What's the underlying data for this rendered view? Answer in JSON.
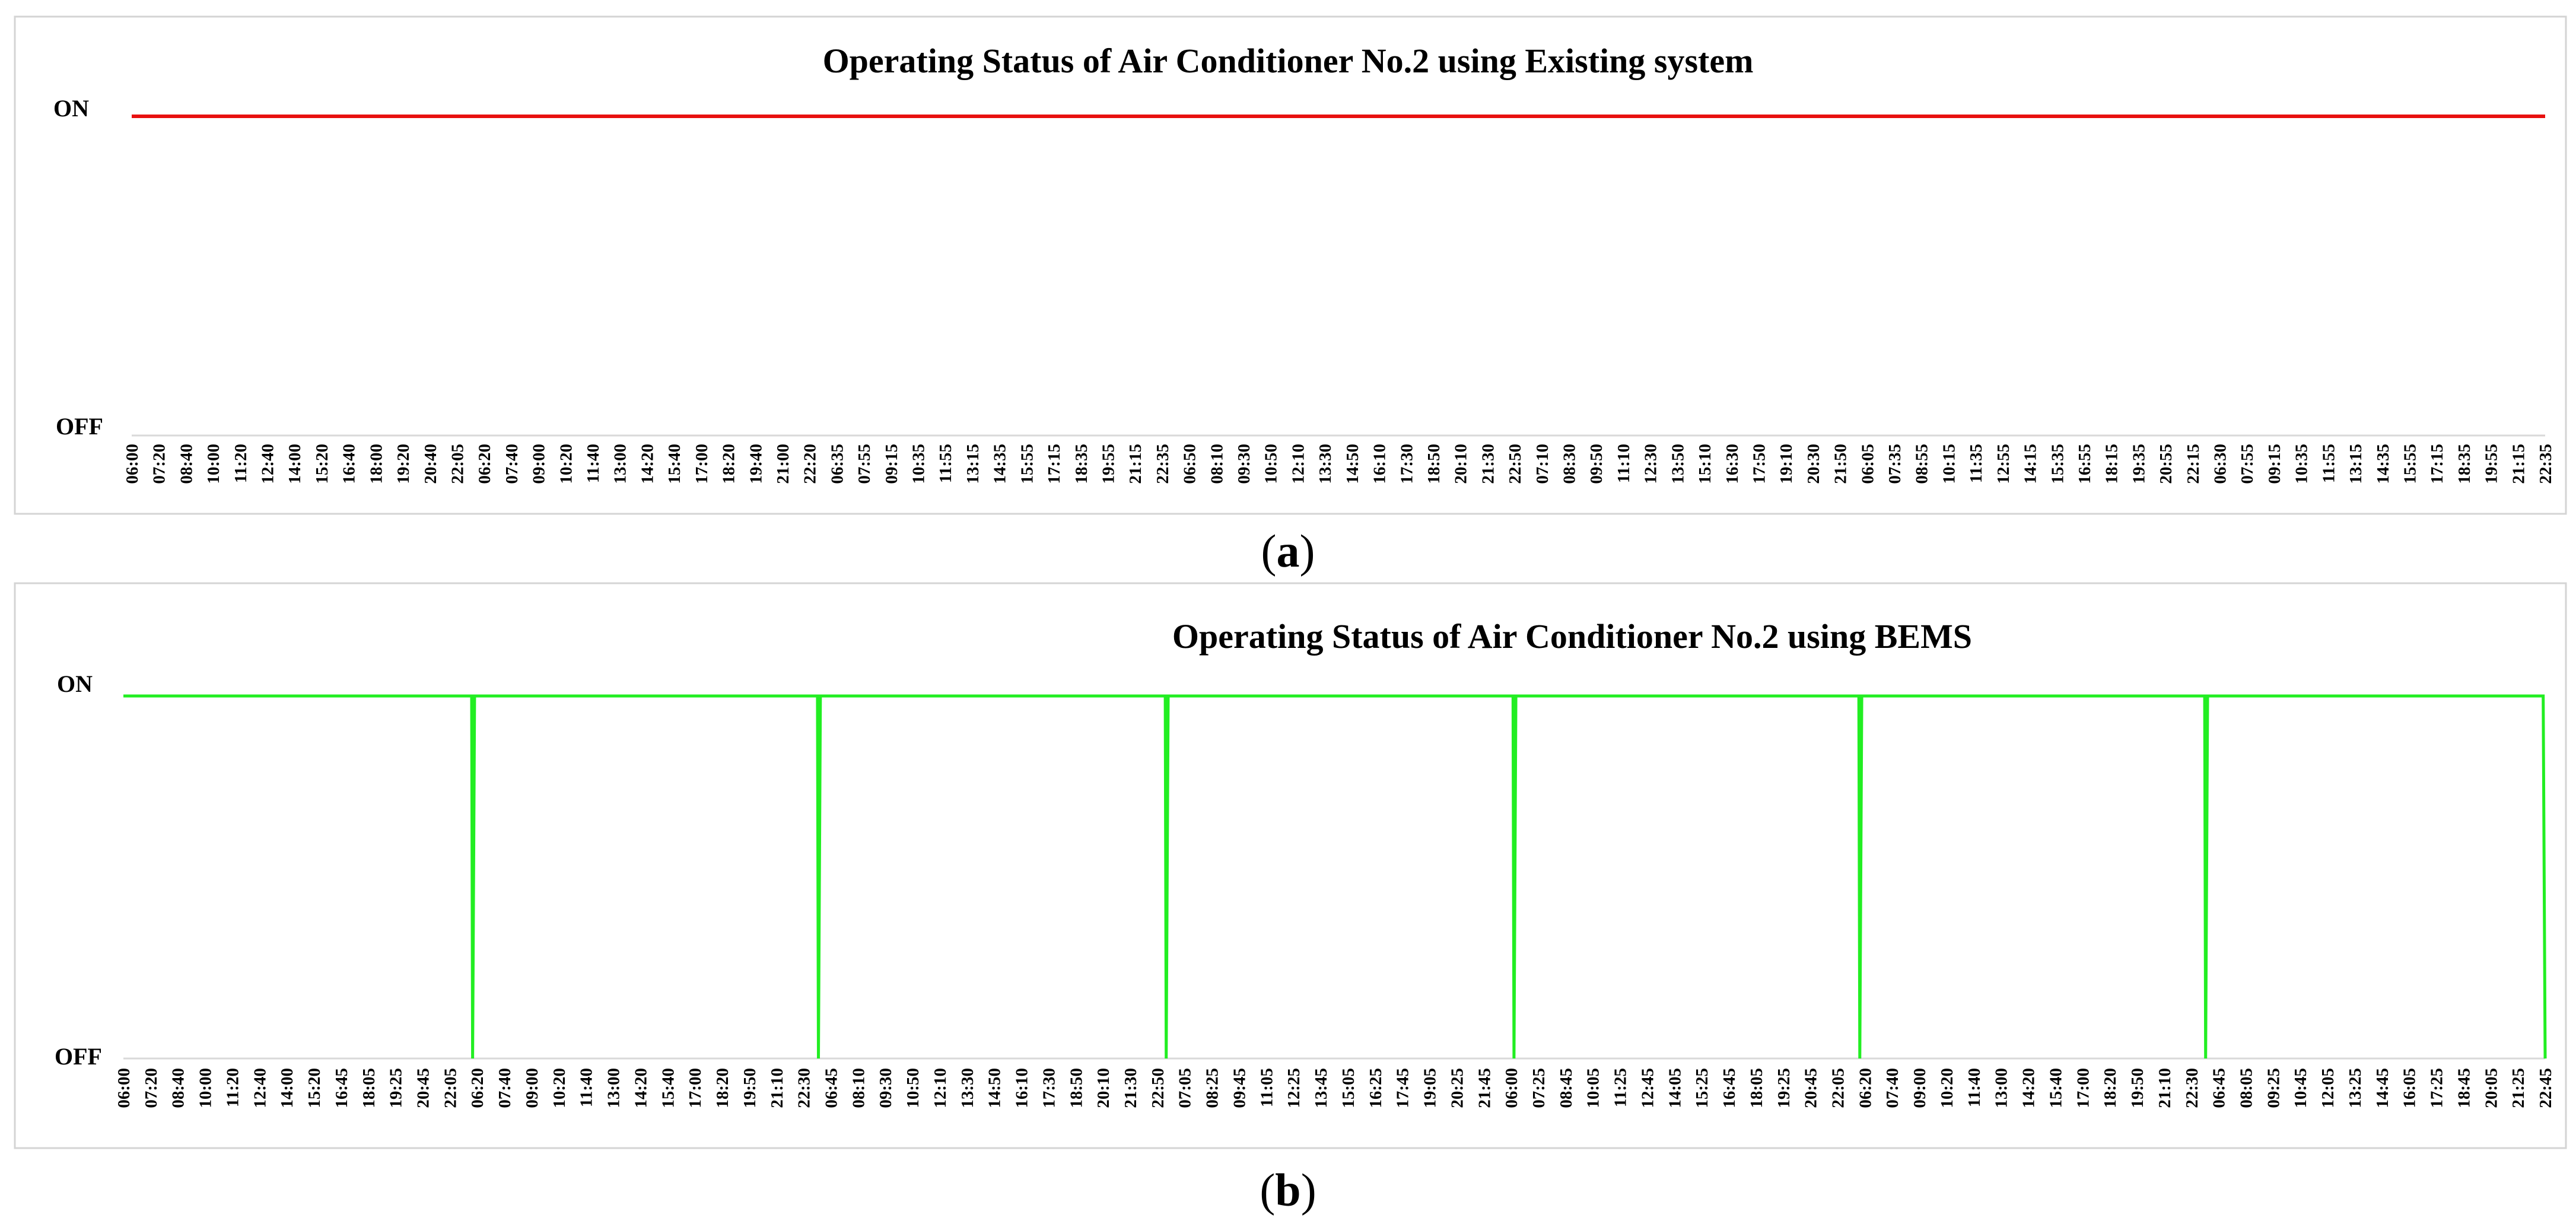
{
  "chart_data": [
    {
      "type": "line",
      "panel_label": "a",
      "title": "Operating Status of Air Conditioner No.2 using Existing system",
      "xlabel": "",
      "ylabel": "",
      "y_tick_labels": [
        "OFF",
        "ON"
      ],
      "ylim": [
        0,
        1
      ],
      "grid": false,
      "legend": "none",
      "line_color": "#e8100f",
      "x_tick_labels": [
        "06:00",
        "07:20",
        "08:40",
        "10:00",
        "11:20",
        "12:40",
        "14:00",
        "15:20",
        "16:40",
        "18:00",
        "19:20",
        "20:40",
        "22:05",
        "06:20",
        "07:40",
        "09:00",
        "10:20",
        "11:40",
        "13:00",
        "14:20",
        "15:40",
        "17:00",
        "18:20",
        "19:40",
        "21:00",
        "22:20",
        "06:35",
        "07:55",
        "09:15",
        "10:35",
        "11:55",
        "13:15",
        "14:35",
        "15:55",
        "17:15",
        "18:35",
        "19:55",
        "21:15",
        "22:35",
        "06:50",
        "08:10",
        "09:30",
        "10:50",
        "12:10",
        "13:30",
        "14:50",
        "16:10",
        "17:30",
        "18:50",
        "20:10",
        "21:30",
        "22:50",
        "07:10",
        "08:30",
        "09:50",
        "11:10",
        "12:30",
        "13:50",
        "15:10",
        "16:30",
        "17:50",
        "19:10",
        "20:30",
        "21:50",
        "06:05",
        "07:35",
        "08:55",
        "10:15",
        "11:35",
        "12:55",
        "14:15",
        "15:35",
        "16:55",
        "18:15",
        "19:35",
        "20:55",
        "22:15",
        "06:30",
        "07:55",
        "09:15",
        "10:35",
        "11:55",
        "13:15",
        "14:35",
        "15:55",
        "17:15",
        "18:35",
        "19:55",
        "21:15",
        "22:35"
      ],
      "series": [
        {
          "name": "",
          "x": [
            0,
            1
          ],
          "y": [
            1,
            1
          ]
        }
      ]
    },
    {
      "type": "line",
      "panel_label": "b",
      "title": "Operating Status of Air Conditioner No.2 using BEMS",
      "xlabel": "",
      "ylabel": "",
      "y_tick_labels": [
        "OFF",
        "ON"
      ],
      "ylim": [
        0,
        1
      ],
      "grid": false,
      "legend": "none",
      "line_color": "#22ee22",
      "x_tick_labels": [
        "06:00",
        "07:20",
        "08:40",
        "10:00",
        "11:20",
        "12:40",
        "14:00",
        "15:20",
        "16:45",
        "18:05",
        "19:25",
        "20:45",
        "22:05",
        "06:20",
        "07:40",
        "09:00",
        "10:20",
        "11:40",
        "13:00",
        "14:20",
        "15:40",
        "17:00",
        "18:20",
        "19:50",
        "21:10",
        "22:30",
        "06:45",
        "08:10",
        "09:30",
        "10:50",
        "12:10",
        "13:30",
        "14:50",
        "16:10",
        "17:30",
        "18:50",
        "20:10",
        "21:30",
        "22:50",
        "07:05",
        "08:25",
        "09:45",
        "11:05",
        "12:25",
        "13:45",
        "15:05",
        "16:25",
        "17:45",
        "19:05",
        "20:25",
        "21:45",
        "06:00",
        "07:25",
        "08:45",
        "10:05",
        "11:25",
        "12:45",
        "14:05",
        "15:25",
        "16:45",
        "18:05",
        "19:25",
        "20:45",
        "22:05",
        "06:20",
        "07:40",
        "09:00",
        "10:20",
        "11:40",
        "13:00",
        "14:20",
        "15:40",
        "17:00",
        "18:20",
        "19:50",
        "21:10",
        "22:30",
        "06:45",
        "08:05",
        "09:25",
        "10:45",
        "12:05",
        "13:25",
        "14:45",
        "16:05",
        "17:25",
        "18:45",
        "20:05",
        "21:25",
        "22:45"
      ],
      "series": [
        {
          "name": "",
          "x": [
            0,
            0.1438,
            0.1442,
            0.145,
            0.2866,
            0.287,
            0.2878,
            0.4302,
            0.4306,
            0.4314,
            0.5738,
            0.5742,
            0.575,
            0.7166,
            0.717,
            0.7178,
            0.8594,
            0.8598,
            0.8606,
            0.9992,
            1.0
          ],
          "y": [
            1,
            1,
            0,
            1,
            1,
            0,
            1,
            1,
            0,
            1,
            1,
            0,
            1,
            1,
            0,
            1,
            1,
            0,
            1,
            1,
            0
          ]
        }
      ]
    }
  ]
}
